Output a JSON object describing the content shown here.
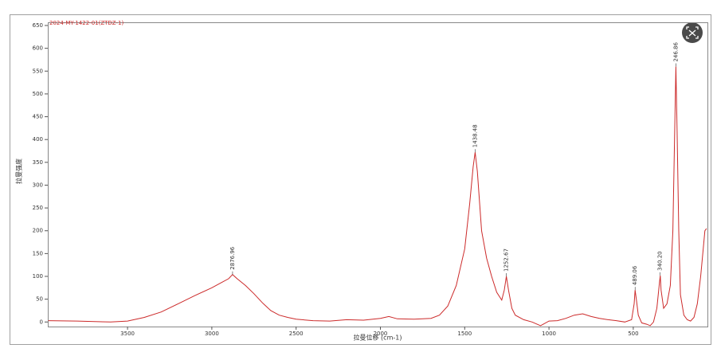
{
  "chart_data": {
    "type": "line",
    "xlabel": "拉曼位移 (cm-1)",
    "ylabel": "拉曼强度",
    "xlim": [
      3973,
      60
    ],
    "xticks": [
      3500,
      3000,
      2500,
      2000,
      1500,
      1000,
      500
    ],
    "ylim": [
      -10,
      657
    ],
    "yticks": [
      0,
      50,
      100,
      150,
      200,
      250,
      300,
      350,
      400,
      450,
      500,
      550,
      600,
      650
    ],
    "grid": false,
    "series": [
      {
        "name": "2024-MY-1422-01(ZTDZ-1)",
        "color": "#cc2a2a",
        "x": [
          3970,
          3800,
          3600,
          3500,
          3400,
          3300,
          3200,
          3100,
          3000,
          2950,
          2900,
          2877,
          2850,
          2800,
          2750,
          2700,
          2650,
          2600,
          2550,
          2500,
          2400,
          2300,
          2200,
          2100,
          2000,
          1950,
          1900,
          1800,
          1700,
          1650,
          1600,
          1550,
          1500,
          1470,
          1450,
          1438,
          1425,
          1400,
          1370,
          1340,
          1310,
          1280,
          1265,
          1253,
          1240,
          1220,
          1200,
          1150,
          1100,
          1050,
          1000,
          950,
          900,
          850,
          800,
          750,
          700,
          650,
          600,
          550,
          510,
          495,
          489,
          480,
          470,
          450,
          420,
          400,
          380,
          360,
          345,
          340,
          335,
          320,
          300,
          280,
          265,
          255,
          247,
          240,
          230,
          220,
          200,
          180,
          160,
          140,
          120,
          100,
          85,
          75,
          65
        ],
        "values": [
          3,
          2,
          0,
          2,
          10,
          22,
          40,
          58,
          75,
          85,
          95,
          104,
          95,
          80,
          62,
          42,
          25,
          15,
          10,
          6,
          3,
          2,
          5,
          4,
          8,
          12,
          7,
          6,
          8,
          15,
          35,
          80,
          160,
          260,
          340,
          372,
          330,
          200,
          140,
          100,
          65,
          48,
          70,
          100,
          70,
          30,
          15,
          5,
          0,
          -8,
          2,
          3,
          8,
          15,
          18,
          12,
          8,
          5,
          3,
          0,
          5,
          40,
          70,
          45,
          15,
          -2,
          -5,
          -8,
          0,
          30,
          85,
          102,
          70,
          30,
          40,
          80,
          200,
          400,
          560,
          420,
          200,
          60,
          15,
          5,
          2,
          10,
          40,
          100,
          160,
          200,
          205
        ]
      }
    ],
    "peaks": [
      {
        "label": "2876.96",
        "x": 2876.96,
        "y": 104
      },
      {
        "label": "1438.48",
        "x": 1438.48,
        "y": 372
      },
      {
        "label": "1252.67",
        "x": 1252.67,
        "y": 100
      },
      {
        "label": "489.06",
        "x": 489.06,
        "y": 70
      },
      {
        "label": "340.20",
        "x": 340.2,
        "y": 102
      },
      {
        "label": "246.86",
        "x": 246.86,
        "y": 560
      }
    ]
  }
}
